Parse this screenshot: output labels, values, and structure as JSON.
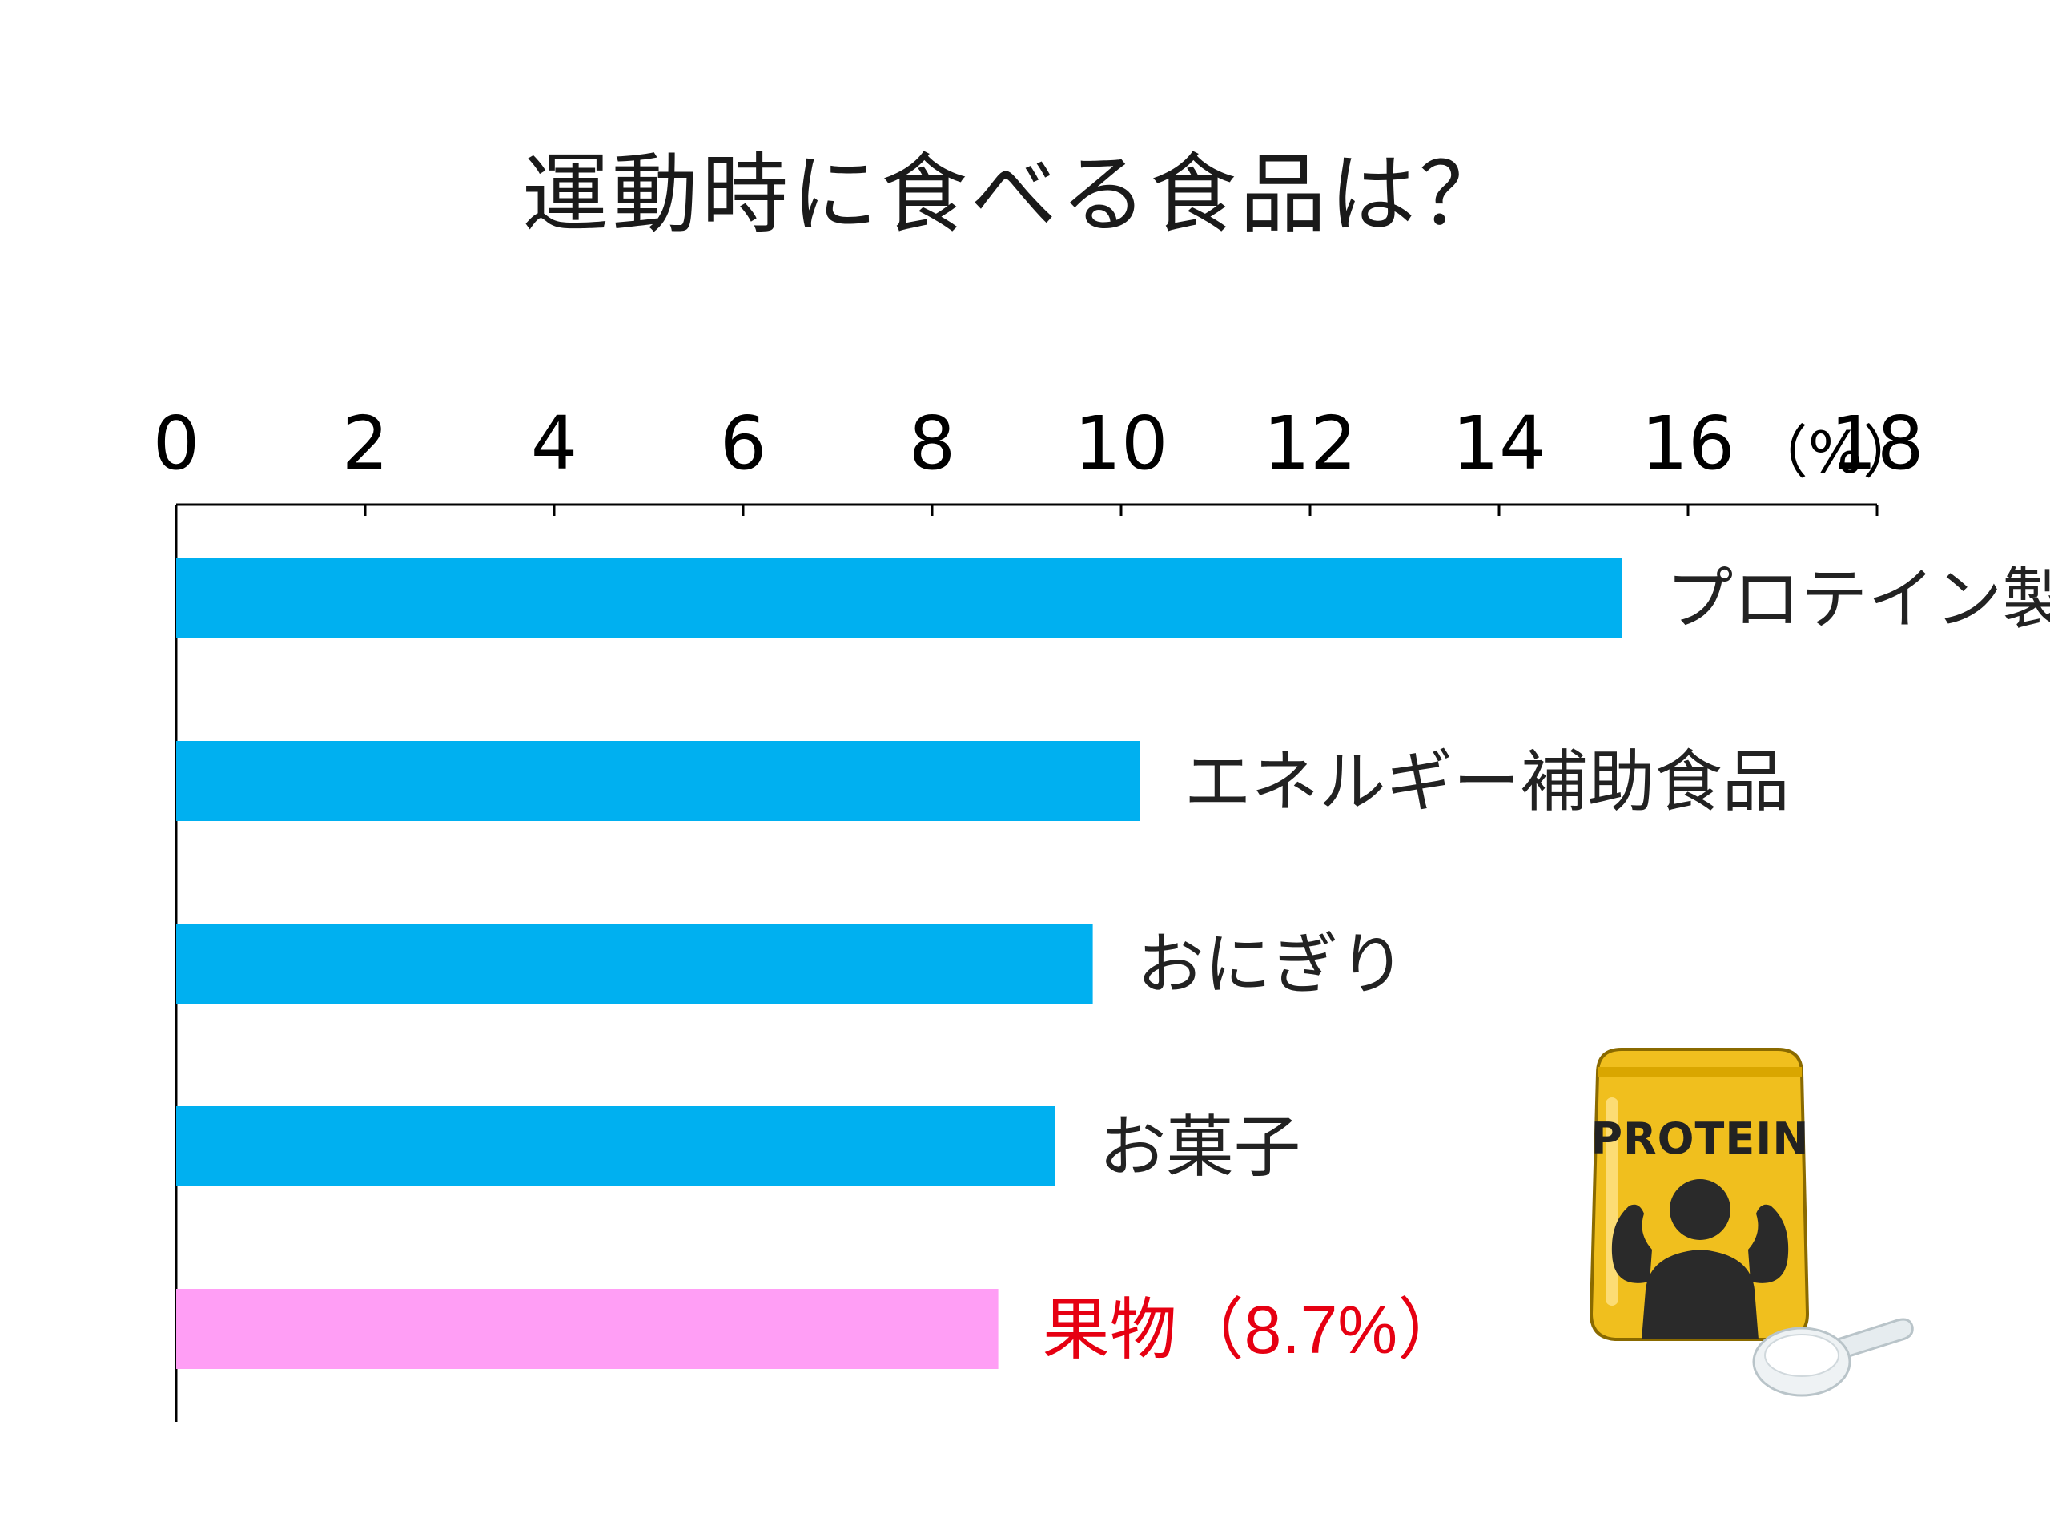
{
  "chart_data": {
    "type": "bar",
    "orientation": "horizontal",
    "title": "運動時に食べる食品は？",
    "unit": "（%）",
    "x_ticks": [
      "0",
      "2",
      "4",
      "6",
      "8",
      "10",
      "12",
      "14",
      "16",
      "18"
    ],
    "xlim": [
      0,
      18
    ],
    "categories": [
      "プロテイン製品",
      "エネルギー補助食品",
      "おにぎり",
      "お菓子",
      "果物"
    ],
    "values": [
      15.3,
      10.2,
      9.7,
      9.3,
      8.7
    ],
    "value_labels": [
      "",
      "",
      "",
      "",
      "（8.7%）"
    ],
    "colors": [
      "#00b0f0",
      "#00b0f0",
      "#00b0f0",
      "#00b0f0",
      "#ff9ef5"
    ],
    "label_colors": [
      "#222222",
      "#222222",
      "#222222",
      "#222222",
      "#e60012"
    ],
    "axis_position": "top",
    "grid": false,
    "legend": "none"
  },
  "illustration": {
    "name": "protein-bag-icon",
    "text": "PROTEIN",
    "bag_color": "#f0bf1e",
    "silhouette_color": "#2a2a2a"
  }
}
